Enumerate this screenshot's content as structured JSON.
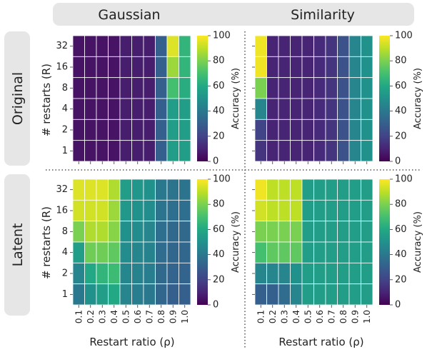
{
  "columns": [
    "Gaussian",
    "Similarity"
  ],
  "rows": [
    "Original",
    "Latent"
  ],
  "colors": {
    "header_bg": "#e6e6e6",
    "divider": "#555555",
    "viridis": [
      "#440154",
      "#482475",
      "#414487",
      "#355f8d",
      "#2a788e",
      "#21918c",
      "#22a884",
      "#44bf70",
      "#7ad151",
      "#bddf26",
      "#fde725"
    ]
  },
  "chart_data": {
    "type": "heatmap",
    "x_categories": [
      "0.1",
      "0.2",
      "0.3",
      "0.4",
      "0.5",
      "0.6",
      "0.7",
      "0.8",
      "0.9",
      "1.0"
    ],
    "y_categories": [
      "32",
      "16",
      "8",
      "4",
      "2",
      "1"
    ],
    "xlabel": "Restart ratio (ρ)",
    "ylabel": "# restarts (R)",
    "colorbar_label": "Accuracy (%)",
    "colorbar_ticks": [
      "0",
      "20",
      "40",
      "60",
      "80",
      "100"
    ],
    "vmin": 0,
    "vmax": 100,
    "panels": [
      {
        "row": "Original",
        "column": "Gaussian",
        "values": [
          [
            5,
            5,
            5,
            5,
            8,
            8,
            8,
            30,
            95,
            65
          ],
          [
            5,
            5,
            5,
            5,
            8,
            8,
            8,
            30,
            85,
            65
          ],
          [
            5,
            5,
            5,
            5,
            8,
            8,
            8,
            30,
            70,
            62
          ],
          [
            5,
            5,
            5,
            5,
            8,
            8,
            8,
            30,
            55,
            55
          ],
          [
            5,
            5,
            5,
            5,
            8,
            8,
            8,
            30,
            55,
            55
          ],
          [
            5,
            5,
            5,
            5,
            8,
            8,
            8,
            30,
            55,
            55
          ]
        ]
      },
      {
        "row": "Original",
        "column": "Similarity",
        "values": [
          [
            98,
            10,
            10,
            10,
            10,
            12,
            15,
            25,
            45,
            50
          ],
          [
            98,
            10,
            10,
            10,
            10,
            12,
            15,
            25,
            45,
            50
          ],
          [
            80,
            10,
            10,
            10,
            10,
            12,
            15,
            25,
            45,
            50
          ],
          [
            45,
            10,
            10,
            10,
            10,
            12,
            15,
            25,
            45,
            50
          ],
          [
            20,
            10,
            10,
            10,
            10,
            12,
            15,
            25,
            45,
            50
          ],
          [
            15,
            10,
            10,
            10,
            10,
            12,
            15,
            25,
            45,
            50
          ]
        ]
      },
      {
        "row": "Latent",
        "column": "Gaussian",
        "values": [
          [
            95,
            95,
            95,
            88,
            55,
            52,
            50,
            40,
            38,
            38
          ],
          [
            93,
            93,
            93,
            85,
            53,
            50,
            48,
            38,
            36,
            36
          ],
          [
            80,
            88,
            88,
            82,
            50,
            48,
            45,
            36,
            34,
            34
          ],
          [
            55,
            78,
            78,
            75,
            48,
            46,
            44,
            35,
            33,
            33
          ],
          [
            45,
            60,
            65,
            68,
            46,
            44,
            42,
            34,
            32,
            32
          ],
          [
            40,
            50,
            55,
            60,
            45,
            42,
            40,
            33,
            30,
            30
          ]
        ]
      },
      {
        "row": "Latent",
        "column": "Similarity",
        "values": [
          [
            98,
            90,
            90,
            90,
            55,
            55,
            55,
            55,
            55,
            55
          ],
          [
            93,
            90,
            90,
            90,
            55,
            55,
            55,
            55,
            55,
            55
          ],
          [
            80,
            80,
            80,
            80,
            55,
            55,
            55,
            55,
            55,
            55
          ],
          [
            70,
            75,
            75,
            75,
            55,
            55,
            55,
            55,
            55,
            55
          ],
          [
            45,
            45,
            45,
            50,
            55,
            55,
            55,
            55,
            55,
            55
          ],
          [
            30,
            30,
            35,
            45,
            55,
            55,
            55,
            55,
            55,
            55
          ]
        ]
      }
    ]
  }
}
